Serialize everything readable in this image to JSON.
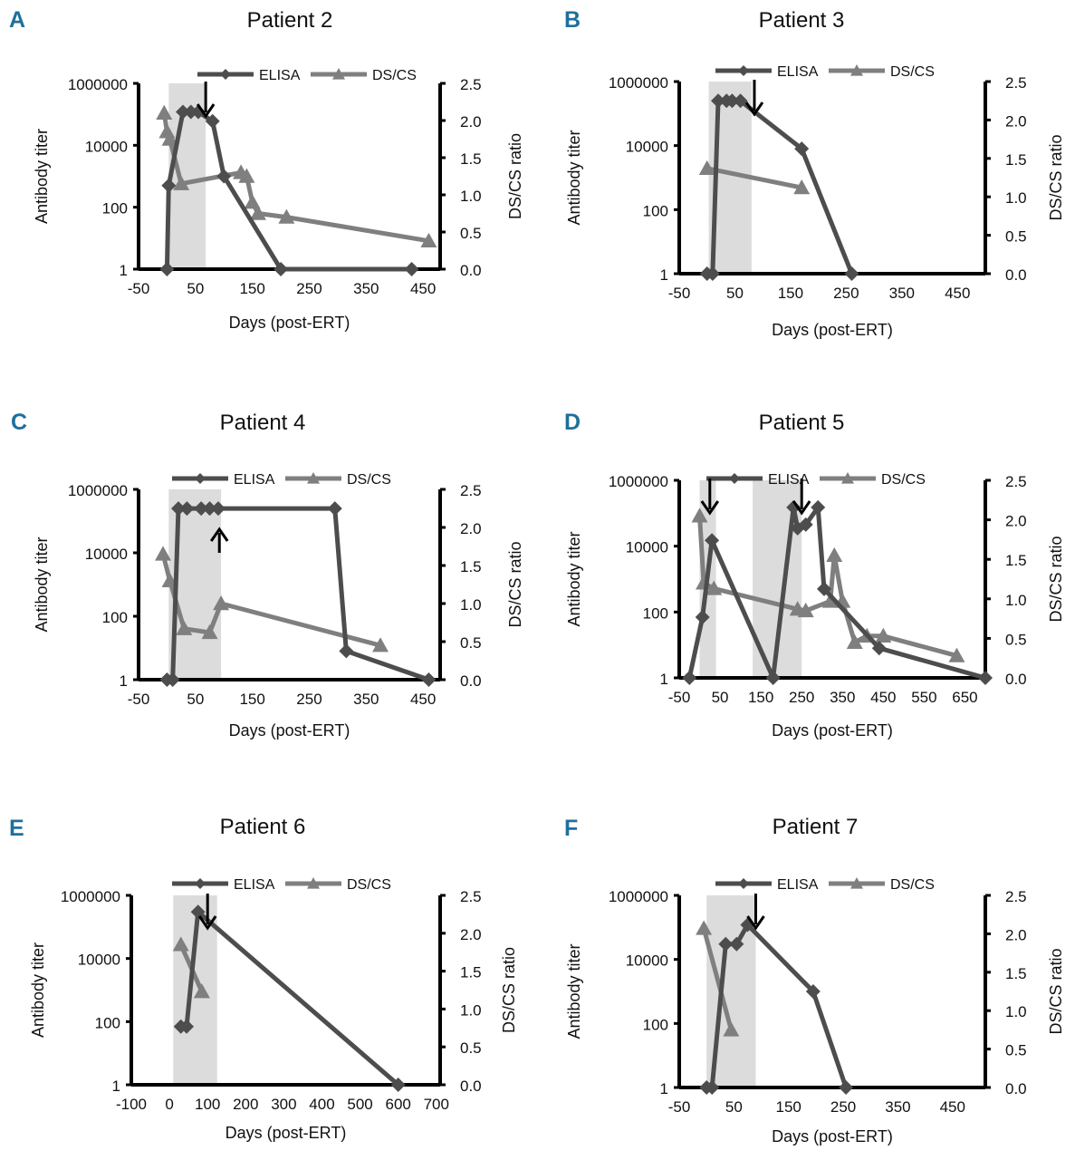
{
  "figure": {
    "ylabel_left": "Antibody titer",
    "ylabel_right": "DS/CS ratio",
    "xlabel": "Days (post-ERT)",
    "legend": [
      "ELISA",
      "DS/CS"
    ],
    "colors": {
      "elisa": "#4d4d4d",
      "dscs": "#7f7f7f",
      "letter": "#1f6f9c",
      "shade": "#d3d3d3",
      "arrow": "#000000"
    }
  },
  "chart_data": [
    {
      "panel": "A",
      "title": "Patient 2",
      "type": "line",
      "xlabel": "Days (post-ERT)",
      "ylabel": "Antibody titer",
      "ylabel_right": "DS/CS ratio",
      "xlim": [
        -50,
        480
      ],
      "xticks": [
        -50,
        50,
        150,
        250,
        350,
        450
      ],
      "yticks_left": [
        "1",
        "100",
        "10000",
        "1000000"
      ],
      "yticks_right": [
        "0.0",
        "0.5",
        "1.0",
        "1.5",
        "2.0",
        "2.5"
      ],
      "ylim_right": [
        0,
        2.5
      ],
      "shaded_region": [
        3,
        68
      ],
      "arrows": [
        {
          "x": 68,
          "direction": "down"
        }
      ],
      "series": [
        {
          "name": "ELISA",
          "axis": "left",
          "marker": "diamond",
          "x": [
            0,
            3,
            28,
            42,
            55,
            80,
            100,
            200,
            430
          ],
          "y": [
            1,
            500,
            120000,
            120000,
            120000,
            60000,
            1000,
            1,
            1
          ]
        },
        {
          "name": "DS/CS",
          "axis": "right",
          "marker": "triangle",
          "x": [
            -5,
            0,
            5,
            25,
            130,
            140,
            150,
            160,
            210,
            460
          ],
          "y": [
            2.1,
            1.85,
            1.75,
            1.15,
            1.3,
            1.25,
            0.9,
            0.75,
            0.7,
            0.38
          ]
        }
      ]
    },
    {
      "panel": "B",
      "title": "Patient 3",
      "type": "line",
      "xlabel": "Days (post-ERT)",
      "ylabel": "Antibody titer",
      "ylabel_right": "DS/CS ratio",
      "xlim": [
        -50,
        500
      ],
      "xticks": [
        -50,
        50,
        150,
        250,
        350,
        450
      ],
      "yticks_left": [
        "1",
        "100",
        "10000",
        "1000000"
      ],
      "yticks_right": [
        "0.0",
        "0.5",
        "1.0",
        "1.5",
        "2.0",
        "2.5"
      ],
      "ylim_right": [
        0,
        2.5
      ],
      "shaded_region": [
        3,
        80
      ],
      "arrows": [
        {
          "x": 85,
          "direction": "down"
        }
      ],
      "series": [
        {
          "name": "ELISA",
          "axis": "left",
          "marker": "diamond",
          "x": [
            0,
            10,
            20,
            35,
            45,
            60,
            170,
            260
          ],
          "y": [
            1,
            1,
            250000,
            250000,
            250000,
            250000,
            8000,
            1
          ]
        },
        {
          "name": "DS/CS",
          "axis": "right",
          "marker": "triangle",
          "x": [
            0,
            170
          ],
          "y": [
            1.37,
            1.12
          ]
        }
      ]
    },
    {
      "panel": "C",
      "title": "Patient 4",
      "type": "line",
      "xlabel": "Days (post-ERT)",
      "ylabel": "Antibody titer",
      "ylabel_right": "DS/CS ratio",
      "xlim": [
        -50,
        480
      ],
      "xticks": [
        -50,
        50,
        150,
        250,
        350,
        450
      ],
      "yticks_left": [
        "1",
        "100",
        "10000",
        "1000000"
      ],
      "yticks_right": [
        "0.0",
        "0.5",
        "1.0",
        "1.5",
        "2.0",
        "2.5"
      ],
      "ylim_right": [
        0,
        2.5
      ],
      "shaded_region": [
        3,
        95
      ],
      "arrows": [
        {
          "x": 92,
          "direction": "up"
        }
      ],
      "series": [
        {
          "name": "ELISA",
          "axis": "left",
          "marker": "diamond",
          "x": [
            0,
            10,
            20,
            35,
            60,
            75,
            90,
            295,
            315,
            460
          ],
          "y": [
            1,
            1,
            250000,
            250000,
            250000,
            250000,
            250000,
            250000,
            8,
            1
          ]
        },
        {
          "name": "DS/CS",
          "axis": "right",
          "marker": "triangle",
          "x": [
            -7,
            5,
            30,
            75,
            95,
            375
          ],
          "y": [
            1.65,
            1.3,
            0.67,
            0.62,
            1.0,
            0.45
          ]
        }
      ]
    },
    {
      "panel": "D",
      "title": "Patient 5",
      "type": "line",
      "xlabel": "Days (post-ERT)",
      "ylabel": "Antibody titer",
      "ylabel_right": "DS/CS ratio",
      "xlim": [
        -50,
        700
      ],
      "xticks": [
        -50,
        50,
        150,
        250,
        350,
        450,
        550,
        650
      ],
      "yticks_left": [
        "1",
        "100",
        "10000",
        "1000000"
      ],
      "yticks_right": [
        "0.0",
        "0.5",
        "1.0",
        "1.5",
        "2.0",
        "2.5"
      ],
      "ylim_right": [
        0,
        2.5
      ],
      "shaded_region_1": [
        0,
        40
      ],
      "shaded_region_2": [
        130,
        250
      ],
      "arrows": [
        {
          "x": 25,
          "direction": "down"
        },
        {
          "x": 250,
          "direction": "down"
        }
      ],
      "series": [
        {
          "name": "ELISA",
          "axis": "left",
          "marker": "diamond",
          "x": [
            -25,
            7,
            30,
            180,
            230,
            240,
            260,
            290,
            305,
            440,
            700
          ],
          "y": [
            1,
            70,
            15000,
            1,
            150000,
            35000,
            45000,
            150000,
            500,
            8,
            1
          ]
        },
        {
          "name": "DS/CS",
          "axis": "right",
          "marker": "triangle",
          "x": [
            0,
            10,
            35,
            240,
            260,
            320,
            330,
            350,
            380,
            410,
            450,
            630
          ],
          "y": [
            2.05,
            1.2,
            1.13,
            0.87,
            0.85,
            0.97,
            1.55,
            0.97,
            0.45,
            0.53,
            0.53,
            0.28
          ]
        }
      ]
    },
    {
      "panel": "E",
      "title": "Patient 6",
      "type": "line",
      "xlabel": "Days (post-ERT)",
      "ylabel": "Antibody titer",
      "ylabel_right": "DS/CS ratio",
      "xlim": [
        -100,
        710
      ],
      "xticks": [
        -100,
        0,
        100,
        200,
        300,
        400,
        500,
        600,
        700
      ],
      "yticks_left": [
        "1",
        "100",
        "10000",
        "1000000"
      ],
      "yticks_right": [
        "0.0",
        "0.5",
        "1.0",
        "1.5",
        "2.0",
        "2.5"
      ],
      "ylim_right": [
        0,
        2.5
      ],
      "shaded_region": [
        10,
        125
      ],
      "arrows": [
        {
          "x": 100,
          "direction": "down"
        }
      ],
      "series": [
        {
          "name": "ELISA",
          "axis": "left",
          "marker": "diamond",
          "x": [
            30,
            45,
            75,
            600
          ],
          "y": [
            70,
            70,
            300000,
            1
          ]
        },
        {
          "name": "DS/CS",
          "axis": "right",
          "marker": "triangle",
          "x": [
            30,
            85
          ],
          "y": [
            1.85,
            1.23
          ]
        }
      ]
    },
    {
      "panel": "F",
      "title": "Patient 7",
      "type": "line",
      "xlabel": "Days (post-ERT)",
      "ylabel": "Antibody titer",
      "ylabel_right": "DS/CS ratio",
      "xlim": [
        -50,
        510
      ],
      "xticks": [
        -50,
        50,
        150,
        250,
        350,
        450
      ],
      "yticks_left": [
        "1",
        "100",
        "10000",
        "1000000"
      ],
      "yticks_right": [
        "0.0",
        "0.5",
        "1.0",
        "1.5",
        "2.0",
        "2.5"
      ],
      "ylim_right": [
        0,
        2.5
      ],
      "shaded_region": [
        0,
        90
      ],
      "arrows": [
        {
          "x": 90,
          "direction": "down"
        }
      ],
      "series": [
        {
          "name": "ELISA",
          "axis": "left",
          "marker": "diamond",
          "x": [
            0,
            10,
            35,
            55,
            75,
            195,
            255
          ],
          "y": [
            1,
            1,
            30000,
            30000,
            120000,
            1000,
            1
          ]
        },
        {
          "name": "DS/CS",
          "axis": "right",
          "marker": "triangle",
          "x": [
            -5,
            45
          ],
          "y": [
            2.07,
            0.75
          ]
        }
      ]
    }
  ]
}
